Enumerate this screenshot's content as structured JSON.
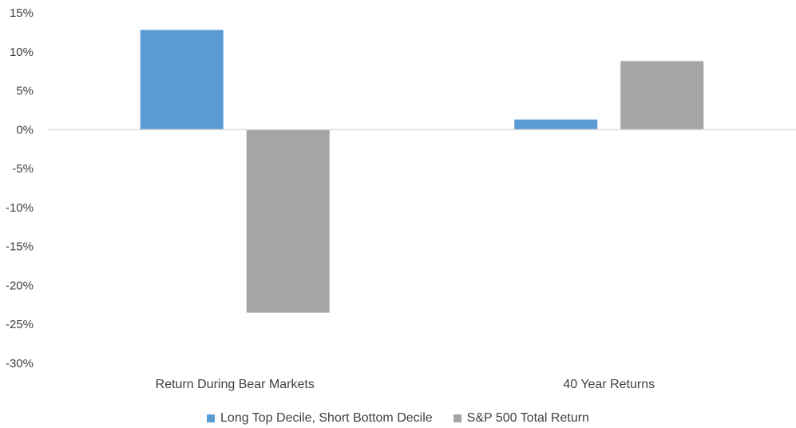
{
  "chart_data": {
    "type": "bar",
    "categories": [
      "Return During Bear Markets",
      "40 Year Returns"
    ],
    "series": [
      {
        "name": "Long Top Decile, Short Bottom Decile",
        "values": [
          12.8,
          1.3
        ],
        "color": "#5b9bd5"
      },
      {
        "name": "S&P 500 Total Return",
        "values": [
          -23.5,
          8.8
        ],
        "color": "#a5a5a5"
      }
    ],
    "ylim": [
      -30,
      15
    ],
    "yticks": [
      15,
      10,
      5,
      0,
      -5,
      -10,
      -15,
      -20,
      -25,
      -30
    ],
    "ytick_labels": [
      "15%",
      "10%",
      "5%",
      "0%",
      "-5%",
      "-10%",
      "-15%",
      "-20%",
      "-25%",
      "-30%"
    ],
    "title": "",
    "xlabel": "",
    "ylabel": "",
    "grid": false,
    "legend_position": "bottom",
    "axis_color": "#d9d9d9"
  }
}
